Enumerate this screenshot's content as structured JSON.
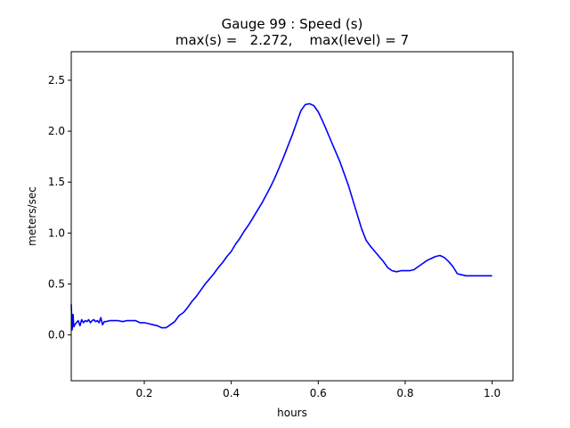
{
  "chart_data": {
    "type": "line",
    "title": "Gauge 99 : Speed (s)",
    "subtitle": "max(s) =   2.272,    max(level) = 7",
    "xlabel": "hours",
    "ylabel": "meters/sec",
    "xlim": [
      0.032,
      1.048
    ],
    "ylim": [
      -0.45,
      2.78
    ],
    "xticks": [
      0.2,
      0.4,
      0.6,
      0.8,
      1.0
    ],
    "xtick_labels": [
      "0.2",
      "0.4",
      "0.6",
      "0.8",
      "1.0"
    ],
    "yticks": [
      0.0,
      0.5,
      1.0,
      1.5,
      2.0,
      2.5
    ],
    "ytick_labels": [
      "0.0",
      "0.5",
      "1.0",
      "1.5",
      "2.0",
      "2.5"
    ],
    "grid": false,
    "series": [
      {
        "color": "#0000ff",
        "x": [
          0.032,
          0.034,
          0.036,
          0.038,
          0.04,
          0.044,
          0.048,
          0.052,
          0.056,
          0.06,
          0.064,
          0.068,
          0.072,
          0.076,
          0.08,
          0.084,
          0.088,
          0.092,
          0.096,
          0.1,
          0.104,
          0.108,
          0.112,
          0.12,
          0.13,
          0.14,
          0.15,
          0.16,
          0.17,
          0.18,
          0.19,
          0.2,
          0.21,
          0.22,
          0.23,
          0.24,
          0.25,
          0.26,
          0.27,
          0.28,
          0.29,
          0.3,
          0.31,
          0.32,
          0.33,
          0.34,
          0.35,
          0.36,
          0.37,
          0.38,
          0.39,
          0.4,
          0.41,
          0.42,
          0.43,
          0.44,
          0.45,
          0.46,
          0.47,
          0.48,
          0.49,
          0.5,
          0.51,
          0.52,
          0.53,
          0.54,
          0.55,
          0.56,
          0.57,
          0.58,
          0.59,
          0.6,
          0.61,
          0.62,
          0.63,
          0.64,
          0.65,
          0.66,
          0.67,
          0.68,
          0.69,
          0.7,
          0.71,
          0.72,
          0.73,
          0.74,
          0.75,
          0.76,
          0.77,
          0.78,
          0.79,
          0.8,
          0.81,
          0.82,
          0.83,
          0.84,
          0.85,
          0.86,
          0.87,
          0.88,
          0.89,
          0.9,
          0.91,
          0.92,
          0.93,
          0.94,
          0.95,
          0.96,
          0.97,
          0.98,
          0.99,
          1.0
        ],
        "y": [
          0.3,
          0.05,
          0.2,
          0.08,
          0.1,
          0.12,
          0.14,
          0.09,
          0.15,
          0.12,
          0.14,
          0.13,
          0.15,
          0.12,
          0.14,
          0.15,
          0.13,
          0.14,
          0.12,
          0.17,
          0.1,
          0.13,
          0.13,
          0.14,
          0.14,
          0.14,
          0.13,
          0.14,
          0.14,
          0.14,
          0.12,
          0.12,
          0.11,
          0.1,
          0.09,
          0.07,
          0.07,
          0.1,
          0.13,
          0.19,
          0.22,
          0.27,
          0.33,
          0.38,
          0.44,
          0.5,
          0.55,
          0.6,
          0.66,
          0.71,
          0.77,
          0.82,
          0.89,
          0.95,
          1.02,
          1.08,
          1.15,
          1.22,
          1.29,
          1.37,
          1.45,
          1.54,
          1.64,
          1.74,
          1.85,
          1.96,
          2.08,
          2.2,
          2.26,
          2.27,
          2.25,
          2.19,
          2.1,
          2.0,
          1.9,
          1.8,
          1.7,
          1.58,
          1.46,
          1.32,
          1.18,
          1.04,
          0.93,
          0.87,
          0.82,
          0.77,
          0.72,
          0.66,
          0.63,
          0.62,
          0.63,
          0.63,
          0.63,
          0.64,
          0.67,
          0.7,
          0.73,
          0.75,
          0.77,
          0.78,
          0.76,
          0.72,
          0.67,
          0.6,
          0.59,
          0.58,
          0.58,
          0.58,
          0.58,
          0.58,
          0.58,
          0.58
        ]
      }
    ]
  }
}
